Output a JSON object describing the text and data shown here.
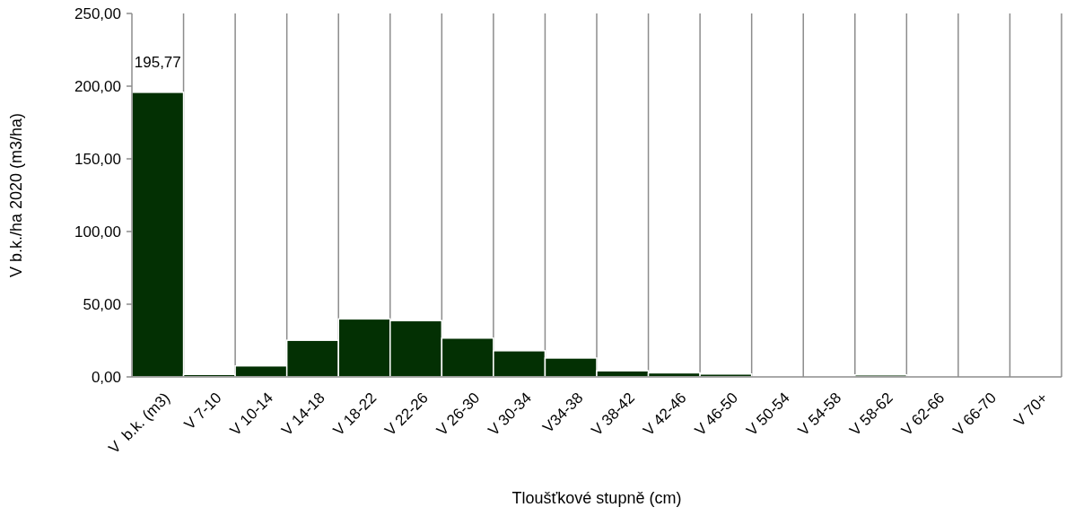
{
  "chart_data": {
    "type": "bar",
    "xlabel": "Tloušťkové stupně (cm)",
    "ylabel": "V b.k./ha 2020 (m3/ha)",
    "categories": [
      "V  b.k. (m3)",
      "V 7-10",
      "V 10-14",
      "V 14-18",
      "V 18-22",
      "V 22-26",
      "V 26-30",
      "V 30-34",
      "V34-38",
      "V 38-42",
      "V 42-46",
      "V 46-50",
      "V 50-54",
      "V 54-58",
      "V 58-62",
      "V 62-66",
      "V 66-70",
      "V 70+"
    ],
    "values": [
      195.77,
      1.7,
      7.6,
      25.2,
      39.9,
      38.7,
      26.7,
      18.0,
      13.0,
      4.2,
      2.8,
      2.0,
      0,
      0,
      1.4,
      0,
      0,
      0
    ],
    "value_labels": [
      "195,77",
      null,
      null,
      null,
      null,
      null,
      null,
      null,
      null,
      null,
      null,
      null,
      null,
      null,
      null,
      null,
      null,
      null
    ],
    "color": "#033003",
    "ylim": [
      0,
      250
    ],
    "yticks": [
      {
        "value": 0,
        "label": "0,00"
      },
      {
        "value": 50,
        "label": "50,00"
      },
      {
        "value": 100,
        "label": "100,00"
      },
      {
        "value": 150,
        "label": "150,00"
      },
      {
        "value": 200,
        "label": "200,00"
      },
      {
        "value": 250,
        "label": "250,00"
      }
    ],
    "grid": "x"
  }
}
